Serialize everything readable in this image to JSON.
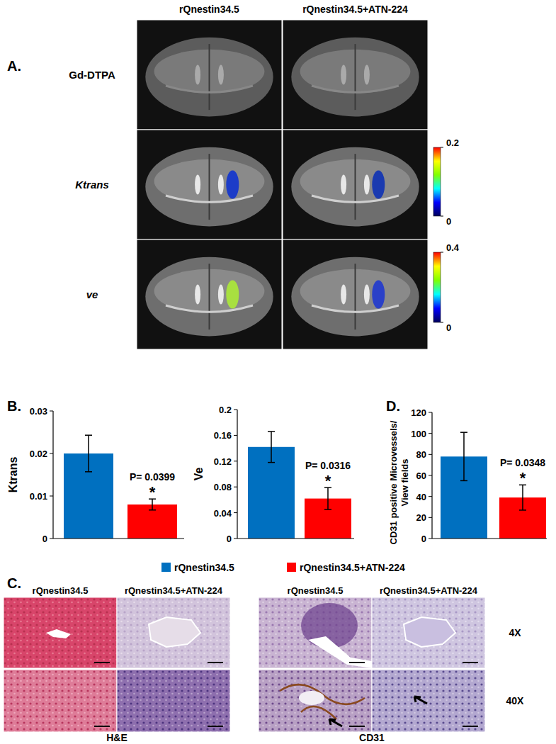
{
  "panels": {
    "A": {
      "label": "A.",
      "columns": [
        "rQnestin34.5",
        "rQnestin34.5+ATN-224"
      ],
      "rows": [
        "Gd-DTPA",
        "Ktrans",
        "ve"
      ],
      "colorbars": [
        {
          "range": [
            0,
            0.2
          ],
          "ticks": [
            0,
            0.2
          ]
        },
        {
          "range": [
            0,
            0.4
          ],
          "ticks": [
            0,
            0.4
          ]
        }
      ]
    },
    "B": {
      "label": "B."
    },
    "C": {
      "label": "C.",
      "columns": [
        "rQnestin34.5",
        "rQnestin34.5+ATN-224",
        "rQnestin34.5",
        "rQnestin34.5+ATN-224"
      ],
      "rows": [
        "4X",
        "40X"
      ],
      "stains": [
        "H&E",
        "CD31"
      ]
    },
    "D": {
      "label": "D."
    },
    "legend": [
      {
        "label": "rQnestin34.5",
        "color": "#0070c0"
      },
      {
        "label": "rQnestin34.5+ATN-224",
        "color": "#ff0000"
      }
    ]
  },
  "chart_data": [
    {
      "type": "bar",
      "y_label": "Ktrans",
      "categories": [
        null,
        null
      ],
      "values": [
        0.02,
        0.008
      ],
      "errors": [
        0.0043,
        0.0013
      ],
      "colors": [
        "#0070c0",
        "#ff0000"
      ],
      "ylim": [
        0,
        0.03
      ],
      "yticks": [
        0,
        0.01,
        0.02,
        0.03
      ],
      "grid": false,
      "tick_labels": "y",
      "annotations": [
        "P= 0.0399",
        "*"
      ]
    },
    {
      "type": "bar",
      "y_label": "Ve",
      "categories": [
        null,
        null
      ],
      "values": [
        0.142,
        0.062
      ],
      "errors": [
        0.024,
        0.017
      ],
      "colors": [
        "#0070c0",
        "#ff0000"
      ],
      "ylim": [
        0,
        0.2
      ],
      "yticks": [
        0,
        0.04,
        0.08,
        0.12,
        0.16,
        0.2
      ],
      "grid": false,
      "tick_labels": "y",
      "annotations": [
        "P= 0.0316",
        "*"
      ]
    },
    {
      "type": "bar",
      "y_label": [
        "CD31 positive Microvessels/",
        "View fields"
      ],
      "categories": [
        null,
        null
      ],
      "values": [
        78,
        39
      ],
      "errors": [
        23,
        12
      ],
      "colors": [
        "#0070c0",
        "#ff0000"
      ],
      "ylim": [
        0,
        120
      ],
      "yticks": [
        0,
        20,
        40,
        60,
        80,
        100,
        120
      ],
      "grid": false,
      "tick_labels": "y",
      "annotations": [
        "P= 0.0348",
        "*"
      ]
    }
  ]
}
